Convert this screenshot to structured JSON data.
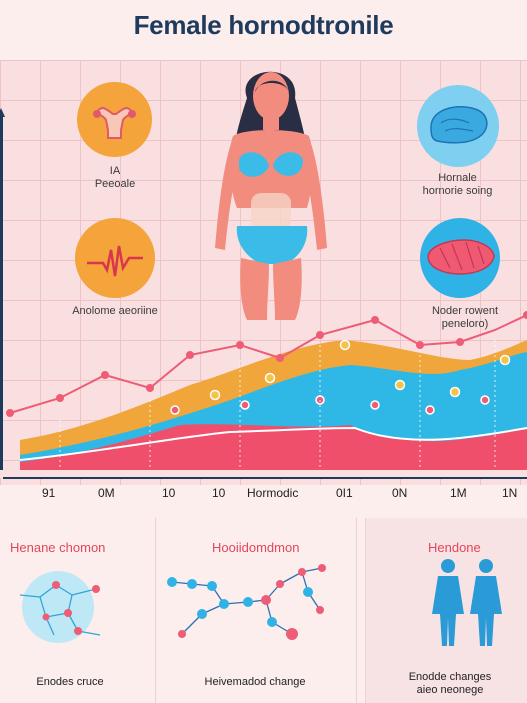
{
  "title": "Female hornodtronile",
  "top": {
    "captions": {
      "uterus": [
        "IA",
        "Peeoale"
      ],
      "pulse": [
        "Anolome aeoriine"
      ],
      "liver": [
        "Hornale",
        "hornorie soing"
      ],
      "organ": [
        "Noder rowent",
        "peneloro)"
      ]
    },
    "ticks": [
      "91",
      "0M",
      "10",
      "10",
      "Hormodic",
      "0I1",
      "0N",
      "1M",
      "1N"
    ]
  },
  "bottom": {
    "left": {
      "title": "Henane chomon",
      "caption": [
        "Enodes cruce"
      ]
    },
    "middle": {
      "title": "Hooiidomdmon",
      "caption": [
        "Heivemadod change"
      ]
    },
    "right": {
      "title": "Hendone",
      "caption": [
        "Enodde changes",
        "aieo neonege"
      ]
    }
  },
  "colors": {
    "pink_area": "#ef4f6b",
    "blue_area": "#2fb8e6",
    "orange_area": "#f0a63a",
    "line": "#ee5c76",
    "navy": "#1e3a5c",
    "accent": "#e4465c"
  }
}
